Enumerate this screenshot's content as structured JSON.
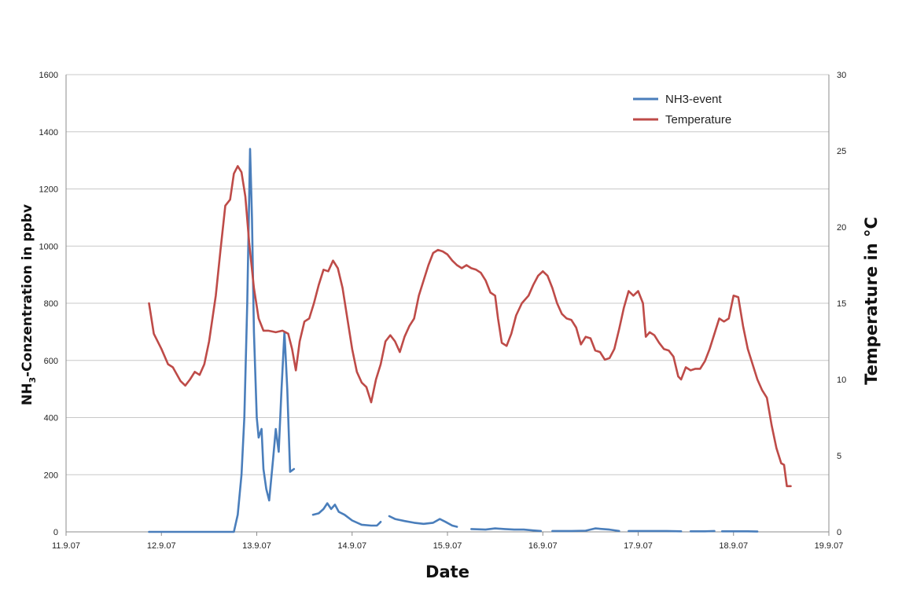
{
  "chart_data": {
    "type": "line",
    "xlabel": "Date",
    "ylabel_left": "NH3-Conzentration in ppbv",
    "ylabel_left_main": "NH",
    "ylabel_left_sub": "3",
    "ylabel_left_rest": "-Conzentration in ppbv",
    "ylabel_right": "Temperature in °C",
    "x_ticks": [
      "11.9.07",
      "12.9.07",
      "13.9.07",
      "14.9.07",
      "15.9.07",
      "16.9.07",
      "17.9.07",
      "18.9.07",
      "19.9.07"
    ],
    "x_range_days": [
      11,
      19
    ],
    "y_left_ticks": [
      "0",
      "200",
      "400",
      "600",
      "800",
      "1000",
      "1200",
      "1400",
      "1600"
    ],
    "y_left_range": [
      0,
      1600
    ],
    "y_right_ticks": [
      "0",
      "5",
      "10",
      "15",
      "20",
      "25",
      "30"
    ],
    "y_right_range": [
      0,
      30
    ],
    "grid": "horizontal",
    "legend_position": "top-right",
    "colors": {
      "nh3": "#4a7ebb",
      "temperature": "#be4b48",
      "grid": "#c8c8c8",
      "axis": "#8c8c8c"
    },
    "series": [
      {
        "name": "NH3-event",
        "key": "nh3",
        "axis": "left",
        "segments": [
          [
            [
              11.87,
              0
            ],
            [
              12.0,
              0
            ],
            [
              12.2,
              0
            ],
            [
              12.4,
              0
            ],
            [
              12.6,
              0
            ],
            [
              12.7,
              0
            ],
            [
              12.76,
              0
            ],
            [
              12.8,
              60
            ],
            [
              12.84,
              200
            ],
            [
              12.87,
              400
            ],
            [
              12.9,
              800
            ],
            [
              12.93,
              1340
            ],
            [
              12.95,
              1100
            ],
            [
              12.97,
              700
            ],
            [
              13.0,
              400
            ],
            [
              13.02,
              330
            ],
            [
              13.05,
              360
            ],
            [
              13.07,
              220
            ],
            [
              13.1,
              150
            ],
            [
              13.13,
              110
            ],
            [
              13.17,
              250
            ],
            [
              13.2,
              360
            ],
            [
              13.23,
              280
            ],
            [
              13.26,
              500
            ],
            [
              13.29,
              700
            ],
            [
              13.32,
              500
            ],
            [
              13.35,
              210
            ],
            [
              13.39,
              220
            ]
          ],
          [
            [
              13.59,
              60
            ],
            [
              13.65,
              65
            ],
            [
              13.7,
              80
            ],
            [
              13.74,
              100
            ],
            [
              13.78,
              80
            ],
            [
              13.82,
              95
            ],
            [
              13.86,
              70
            ],
            [
              13.92,
              60
            ],
            [
              14.0,
              40
            ],
            [
              14.1,
              25
            ],
            [
              14.2,
              22
            ],
            [
              14.26,
              22
            ],
            [
              14.3,
              35
            ]
          ],
          [
            [
              14.39,
              55
            ],
            [
              14.45,
              45
            ],
            [
              14.55,
              38
            ],
            [
              14.65,
              32
            ],
            [
              14.75,
              28
            ],
            [
              14.85,
              32
            ],
            [
              14.92,
              45
            ],
            [
              14.98,
              35
            ],
            [
              15.05,
              22
            ],
            [
              15.1,
              18
            ]
          ],
          [
            [
              15.25,
              10
            ],
            [
              15.4,
              8
            ],
            [
              15.5,
              12
            ],
            [
              15.6,
              10
            ],
            [
              15.7,
              8
            ],
            [
              15.8,
              8
            ],
            [
              15.9,
              5
            ],
            [
              15.98,
              3
            ]
          ],
          [
            [
              16.1,
              3
            ],
            [
              16.3,
              3
            ],
            [
              16.45,
              4
            ],
            [
              16.55,
              12
            ],
            [
              16.7,
              8
            ],
            [
              16.8,
              3
            ]
          ],
          [
            [
              16.9,
              3
            ],
            [
              17.1,
              3
            ],
            [
              17.3,
              3
            ],
            [
              17.45,
              2
            ]
          ],
          [
            [
              17.55,
              2
            ],
            [
              17.7,
              2
            ],
            [
              17.8,
              3
            ]
          ],
          [
            [
              17.88,
              2
            ],
            [
              18.0,
              2
            ],
            [
              18.15,
              2
            ],
            [
              18.25,
              1
            ]
          ]
        ]
      },
      {
        "name": "Temperature",
        "key": "temperature",
        "axis": "right",
        "segments": [
          [
            [
              11.87,
              15
            ],
            [
              11.92,
              13
            ],
            [
              12.0,
              12
            ],
            [
              12.07,
              11
            ],
            [
              12.12,
              10.8
            ],
            [
              12.2,
              9.9
            ],
            [
              12.25,
              9.6
            ],
            [
              12.3,
              10
            ],
            [
              12.35,
              10.5
            ],
            [
              12.4,
              10.3
            ],
            [
              12.45,
              11
            ],
            [
              12.5,
              12.5
            ],
            [
              12.57,
              15.5
            ],
            [
              12.62,
              18.5
            ],
            [
              12.67,
              21.4
            ],
            [
              12.72,
              21.8
            ],
            [
              12.76,
              23.5
            ],
            [
              12.8,
              24
            ],
            [
              12.84,
              23.6
            ],
            [
              12.88,
              22
            ],
            [
              12.92,
              19
            ],
            [
              12.97,
              16
            ],
            [
              13.02,
              14
            ],
            [
              13.07,
              13.2
            ],
            [
              13.12,
              13.2
            ],
            [
              13.2,
              13.1
            ],
            [
              13.27,
              13.2
            ],
            [
              13.33,
              13
            ],
            [
              13.37,
              12
            ],
            [
              13.41,
              10.6
            ],
            [
              13.45,
              12.5
            ],
            [
              13.5,
              13.8
            ],
            [
              13.55,
              14
            ],
            [
              13.6,
              15
            ],
            [
              13.65,
              16.2
            ],
            [
              13.7,
              17.2
            ],
            [
              13.75,
              17.1
            ],
            [
              13.8,
              17.8
            ],
            [
              13.85,
              17.3
            ],
            [
              13.9,
              16
            ],
            [
              13.95,
              14
            ],
            [
              14.0,
              12
            ],
            [
              14.05,
              10.5
            ],
            [
              14.1,
              9.8
            ],
            [
              14.15,
              9.5
            ],
            [
              14.2,
              8.5
            ],
            [
              14.25,
              10
            ],
            [
              14.3,
              11
            ],
            [
              14.35,
              12.5
            ],
            [
              14.4,
              12.9
            ],
            [
              14.45,
              12.5
            ],
            [
              14.5,
              11.8
            ],
            [
              14.55,
              12.8
            ],
            [
              14.6,
              13.5
            ],
            [
              14.65,
              14
            ],
            [
              14.7,
              15.5
            ],
            [
              14.75,
              16.5
            ],
            [
              14.8,
              17.5
            ],
            [
              14.85,
              18.3
            ],
            [
              14.9,
              18.5
            ],
            [
              14.95,
              18.4
            ],
            [
              15.0,
              18.2
            ],
            [
              15.05,
              17.8
            ],
            [
              15.1,
              17.5
            ],
            [
              15.15,
              17.3
            ],
            [
              15.2,
              17.5
            ],
            [
              15.25,
              17.3
            ],
            [
              15.3,
              17.2
            ],
            [
              15.35,
              17
            ],
            [
              15.4,
              16.5
            ],
            [
              15.45,
              15.7
            ],
            [
              15.5,
              15.5
            ],
            [
              15.53,
              14
            ],
            [
              15.57,
              12.4
            ],
            [
              15.62,
              12.2
            ],
            [
              15.67,
              13
            ],
            [
              15.72,
              14.2
            ],
            [
              15.78,
              15
            ],
            [
              15.85,
              15.5
            ],
            [
              15.9,
              16.2
            ],
            [
              15.95,
              16.8
            ],
            [
              16.0,
              17.1
            ],
            [
              16.05,
              16.8
            ],
            [
              16.1,
              16
            ],
            [
              16.15,
              15
            ],
            [
              16.2,
              14.3
            ],
            [
              16.25,
              14
            ],
            [
              16.3,
              13.9
            ],
            [
              16.35,
              13.4
            ],
            [
              16.4,
              12.3
            ],
            [
              16.45,
              12.8
            ],
            [
              16.5,
              12.7
            ],
            [
              16.55,
              11.9
            ],
            [
              16.6,
              11.8
            ],
            [
              16.65,
              11.3
            ],
            [
              16.7,
              11.4
            ],
            [
              16.75,
              12
            ],
            [
              16.8,
              13.3
            ],
            [
              16.85,
              14.7
            ],
            [
              16.9,
              15.8
            ],
            [
              16.95,
              15.5
            ],
            [
              17.0,
              15.8
            ],
            [
              17.05,
              15
            ],
            [
              17.08,
              12.8
            ],
            [
              17.12,
              13.1
            ],
            [
              17.17,
              12.9
            ],
            [
              17.22,
              12.4
            ],
            [
              17.27,
              12
            ],
            [
              17.32,
              11.9
            ],
            [
              17.37,
              11.5
            ],
            [
              17.42,
              10.2
            ],
            [
              17.45,
              10
            ],
            [
              17.5,
              10.8
            ],
            [
              17.55,
              10.6
            ],
            [
              17.6,
              10.7
            ],
            [
              17.65,
              10.7
            ],
            [
              17.7,
              11.2
            ],
            [
              17.75,
              12
            ],
            [
              17.8,
              13
            ],
            [
              17.85,
              14
            ],
            [
              17.9,
              13.8
            ],
            [
              17.95,
              14
            ],
            [
              18.0,
              15.5
            ],
            [
              18.05,
              15.4
            ],
            [
              18.1,
              13.5
            ],
            [
              18.15,
              12
            ],
            [
              18.2,
              11
            ],
            [
              18.25,
              10
            ],
            [
              18.3,
              9.3
            ],
            [
              18.35,
              8.8
            ],
            [
              18.4,
              7
            ],
            [
              18.45,
              5.5
            ],
            [
              18.5,
              4.5
            ],
            [
              18.53,
              4.4
            ],
            [
              18.56,
              3
            ],
            [
              18.6,
              3
            ]
          ]
        ]
      }
    ]
  }
}
